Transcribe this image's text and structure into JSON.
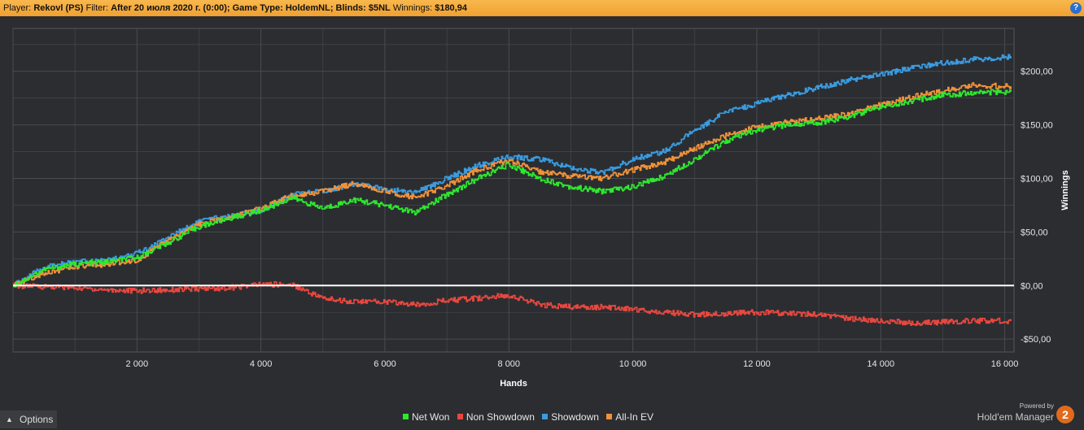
{
  "header": {
    "player_label": "Player:",
    "player_value": "Rekovl (PS)",
    "filter_label": "Filter:",
    "filter_value": "After 20 июля 2020 г. (0:00); Game Type: HoldemNL; Blinds: $5NL",
    "winnings_label": "Winnings:",
    "winnings_value": "$180,94",
    "help_glyph": "?"
  },
  "footer": {
    "options_label": "Options",
    "powered_by": "Powered by",
    "brand": "Hold'em Manager",
    "logo_text": "2"
  },
  "colors": {
    "background": "#2b2d31",
    "grid": "#4a4c50",
    "zero_line": "#ffffff",
    "net_won": "#2ee82e",
    "non_showdown": "#e8473f",
    "showdown": "#3a9be0",
    "allin_ev": "#f0923a",
    "header": "#f5ac40"
  },
  "chart_data": {
    "type": "line",
    "xlabel": "Hands",
    "ylabel": "Winnings",
    "xlim": [
      0,
      16150
    ],
    "ylim": [
      -62,
      240
    ],
    "x_ticks": [
      2000,
      4000,
      6000,
      8000,
      10000,
      12000,
      14000,
      16000
    ],
    "x_tick_labels": [
      "2 000",
      "4 000",
      "6 000",
      "8 000",
      "10 000",
      "12 000",
      "14 000",
      "16 000"
    ],
    "y_ticks": [
      -50,
      0,
      50,
      100,
      150,
      200
    ],
    "y_tick_labels": [
      "-$50,00",
      "$0,00",
      "$50,00",
      "$100,00",
      "$150,00",
      "$200,00"
    ],
    "grid": true,
    "legend_position": "bottom-center",
    "x": [
      0,
      500,
      1000,
      1500,
      2000,
      2500,
      3000,
      3500,
      4000,
      4500,
      5000,
      5500,
      6000,
      6500,
      7000,
      7500,
      8000,
      8500,
      9000,
      9500,
      10000,
      10500,
      11000,
      11500,
      12000,
      12500,
      13000,
      13500,
      14000,
      14500,
      15000,
      15500,
      16100
    ],
    "series": [
      {
        "name": "Net Won",
        "color": "#2ee82e",
        "values": [
          0,
          15,
          20,
          22,
          26,
          40,
          55,
          63,
          70,
          82,
          72,
          80,
          75,
          68,
          85,
          100,
          113,
          100,
          92,
          88,
          92,
          102,
          118,
          135,
          145,
          150,
          152,
          158,
          167,
          172,
          178,
          180,
          181
        ]
      },
      {
        "name": "Non Showdown",
        "color": "#e8473f",
        "values": [
          0,
          -1,
          -2,
          -4,
          -5,
          -4,
          -3,
          -2,
          1,
          1,
          -12,
          -15,
          -15,
          -18,
          -14,
          -12,
          -9,
          -18,
          -20,
          -20,
          -22,
          -25,
          -27,
          -26,
          -25,
          -26,
          -27,
          -31,
          -33,
          -35,
          -34,
          -33,
          -33
        ]
      },
      {
        "name": "Showdown",
        "color": "#3a9be0",
        "values": [
          0,
          17,
          22,
          23,
          30,
          45,
          60,
          65,
          70,
          85,
          88,
          95,
          90,
          87,
          100,
          112,
          120,
          118,
          110,
          105,
          118,
          125,
          145,
          162,
          170,
          178,
          185,
          192,
          197,
          203,
          208,
          211,
          214
        ]
      },
      {
        "name": "All-In EV",
        "color": "#f0923a",
        "values": [
          0,
          12,
          17,
          20,
          24,
          42,
          57,
          64,
          72,
          84,
          88,
          95,
          88,
          82,
          93,
          108,
          117,
          106,
          102,
          100,
          108,
          115,
          128,
          140,
          148,
          153,
          156,
          160,
          169,
          176,
          182,
          187,
          186
        ]
      }
    ]
  }
}
